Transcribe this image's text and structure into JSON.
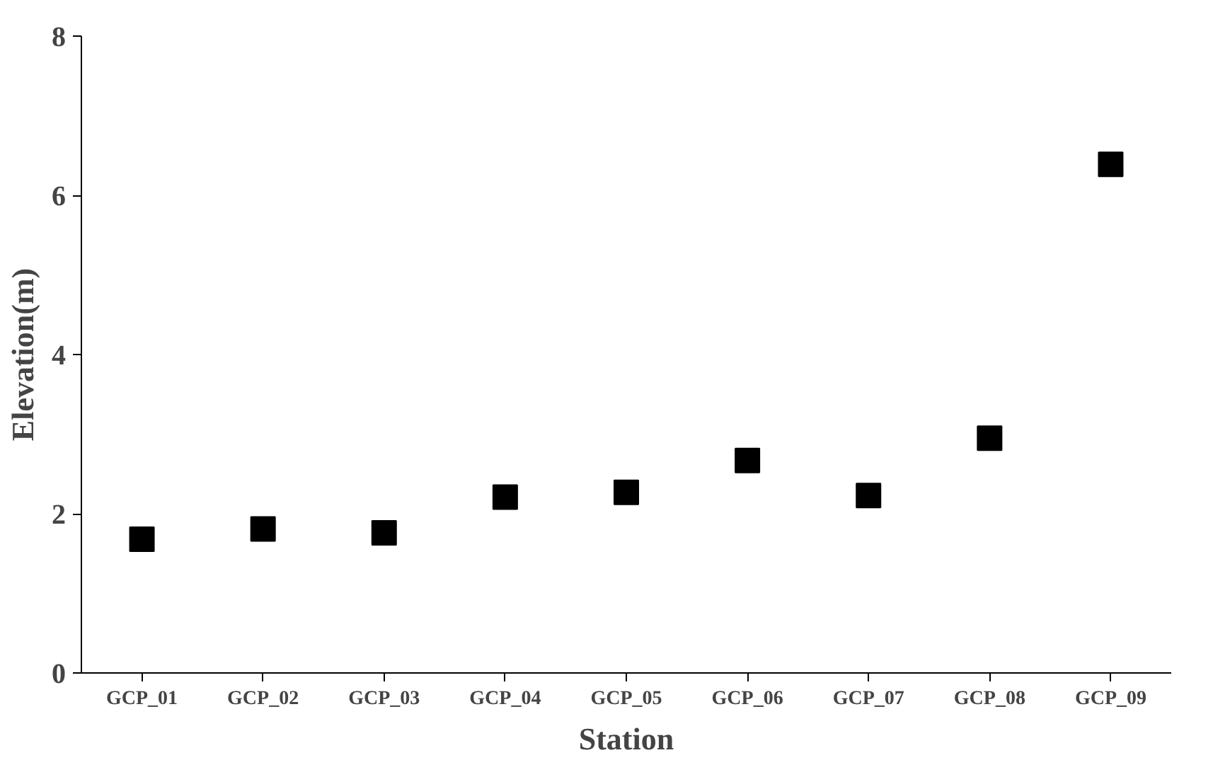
{
  "chart_data": {
    "type": "scatter",
    "xlabel": "Station",
    "ylabel": "Elevation(m)",
    "categories": [
      "GCP_01",
      "GCP_02",
      "GCP_03",
      "GCP_04",
      "GCP_05",
      "GCP_06",
      "GCP_07",
      "GCP_08",
      "GCP_09"
    ],
    "series": [
      {
        "color": "#000000",
        "values": [
          1.68,
          1.81,
          1.76,
          2.21,
          2.27,
          2.67,
          2.23,
          2.95,
          6.39
        ]
      }
    ],
    "ylim": [
      0,
      8
    ],
    "yticks": [
      0,
      2,
      4,
      6,
      8
    ],
    "grid": false,
    "marker": "square"
  }
}
